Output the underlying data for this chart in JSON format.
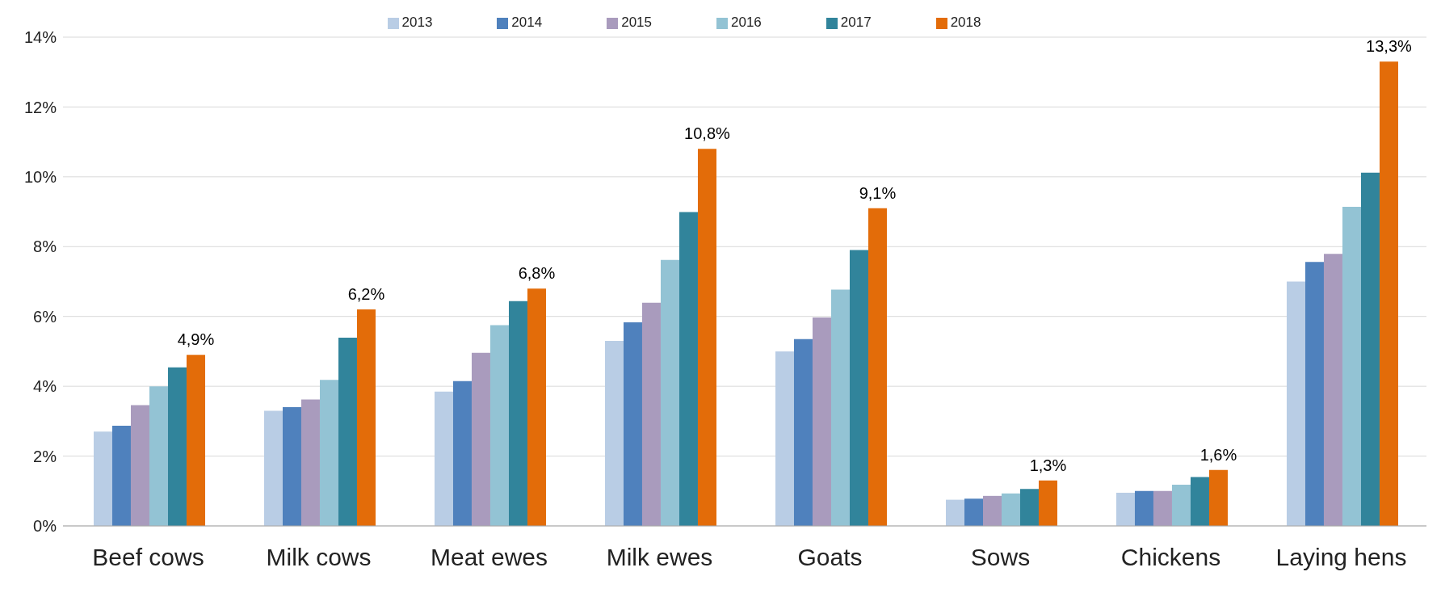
{
  "chart_data": {
    "type": "bar",
    "categories": [
      "Beef cows",
      "Milk cows",
      "Meat ewes",
      "Milk ewes",
      "Goats",
      "Sows",
      "Chickens",
      "Laying hens"
    ],
    "series": [
      {
        "name": "2013",
        "color": "#b9cde5",
        "values": [
          2.7,
          3.3,
          3.85,
          5.3,
          5.0,
          0.75,
          0.95,
          7.0
        ]
      },
      {
        "name": "2014",
        "color": "#4f81bd",
        "values": [
          2.87,
          3.4,
          4.15,
          5.83,
          5.35,
          0.78,
          1.0,
          7.56
        ]
      },
      {
        "name": "2015",
        "color": "#a99bbd",
        "values": [
          3.46,
          3.62,
          4.96,
          6.39,
          5.97,
          0.86,
          1.0,
          7.79
        ]
      },
      {
        "name": "2016",
        "color": "#93c3d4",
        "values": [
          4.0,
          4.18,
          5.75,
          7.62,
          6.77,
          0.93,
          1.18,
          9.14
        ]
      },
      {
        "name": "2017",
        "color": "#31849b",
        "values": [
          4.54,
          5.39,
          6.44,
          8.99,
          7.9,
          1.06,
          1.4,
          10.12
        ]
      },
      {
        "name": "2018",
        "color": "#e36c09",
        "values": [
          4.9,
          6.2,
          6.8,
          10.8,
          9.1,
          1.3,
          1.6,
          13.3
        ],
        "value_labels": [
          "4,9%",
          "6,2%",
          "6,8%",
          "10,8%",
          "9,1%",
          "1,3%",
          "1,6%",
          "13,3%"
        ]
      }
    ],
    "ylim": [
      0,
      14
    ],
    "yticks": [
      {
        "value": 0,
        "label": "0%"
      },
      {
        "value": 2,
        "label": "2%"
      },
      {
        "value": 4,
        "label": "4%"
      },
      {
        "value": 6,
        "label": "6%"
      },
      {
        "value": 8,
        "label": "8%"
      },
      {
        "value": 10,
        "label": "10%"
      },
      {
        "value": 12,
        "label": "12%"
      },
      {
        "value": 14,
        "label": "14%"
      }
    ],
    "grid": "y",
    "legend": "top"
  }
}
